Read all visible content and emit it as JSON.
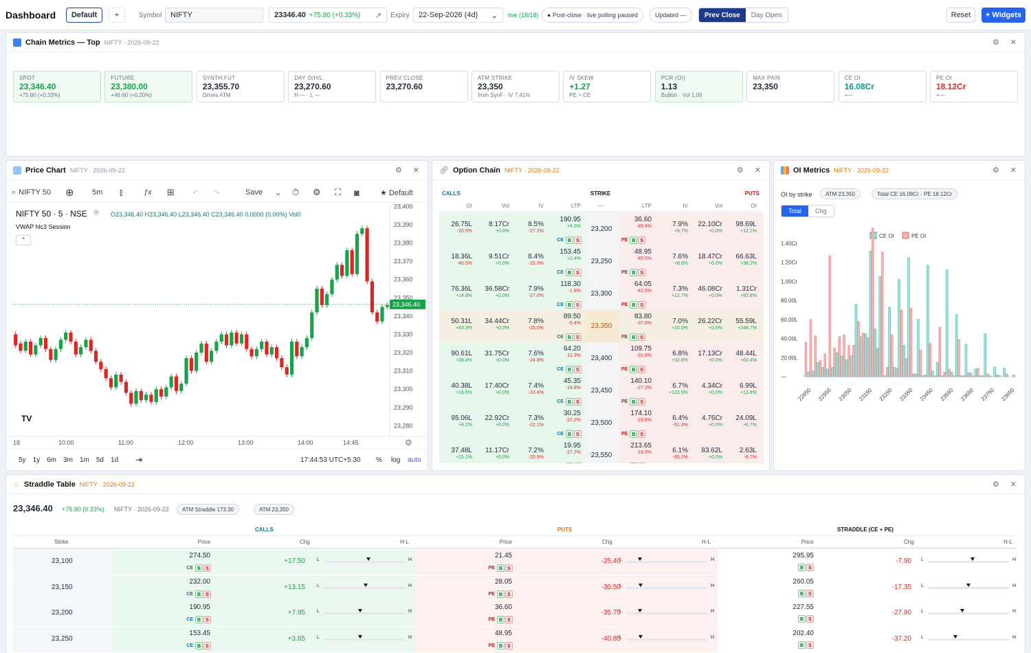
{
  "topbar": {
    "title": "Dashboard",
    "layout_btn": "Default",
    "add_btn": "+",
    "symbol_label": "Symbol",
    "symbol_value": "NIFTY",
    "price": "23346.40",
    "change": "+75.80 (+0.33%)",
    "expiry_label": "Expiry",
    "expiry_value": "22-Sep-2026 (4d)",
    "live": "live (18/18)",
    "status_pill": "● Post-close · live polling paused",
    "updated": "Updated —",
    "prev_close": "Prev Close",
    "day_open": "Day Open",
    "reset": "Reset",
    "widgets": "+ Widgets"
  },
  "metrics": {
    "title": "Chain Metrics — Top",
    "sub": "NIFTY · 2026-09-22",
    "cards": [
      {
        "k": "SPOT",
        "v": "23,346.40",
        "s": "+75.80 (+0.33%)",
        "tone": "up",
        "bg": "g"
      },
      {
        "k": "FUTURE",
        "v": "23,380.00",
        "s": "+46.60 (+0.20%)",
        "tone": "up",
        "bg": "g"
      },
      {
        "k": "SYNTH.FUT",
        "v": "23,355.70",
        "s": "Drives ATM",
        "tone": "",
        "bg": ""
      },
      {
        "k": "DAY O/H/L",
        "v": "23,270.60",
        "s": "H — · L —",
        "tone": "",
        "bg": ""
      },
      {
        "k": "PREV CLOSE",
        "v": "23,270.60",
        "s": "",
        "tone": "",
        "bg": ""
      },
      {
        "k": "ATM STRIKE",
        "v": "23,350",
        "s": "from SynF · IV 7.41%",
        "tone": "",
        "bg": ""
      },
      {
        "k": "IV SKEW",
        "v": "+1.27",
        "s": "PE > CE",
        "tone": "up",
        "bg": ""
      },
      {
        "k": "PCR (OI)",
        "v": "1.13",
        "s": "Bullish · Vol 1.00",
        "tone": "",
        "bg": "g"
      },
      {
        "k": "MAX PAIN",
        "v": "23,350",
        "s": "",
        "tone": "",
        "bg": ""
      },
      {
        "k": "CE OI",
        "v": "16.08Cr",
        "s": "+—",
        "tone": "tl",
        "bg": ""
      },
      {
        "k": "PE OI",
        "v": "18.12Cr",
        "s": "+—",
        "tone": "dn",
        "bg": ""
      }
    ]
  },
  "price_chart": {
    "title": "Price Chart",
    "sub": "NIFTY · 2026-09-22",
    "symbol": "NIFTY 50",
    "interval": "5m",
    "save": "Save",
    "template": "★ Default",
    "legend_title": "NIFTY 50 · 5 · NSE",
    "ohlc": "O23,346.40 H23,346.40 L23,346.40 C23,346.40 0.0000 (0.00%) Vol0",
    "indicator": "VWAP hlc3 Session",
    "last_price": "23,346.40",
    "time": "17:44:53 UTC+5:30",
    "ranges": [
      "5y",
      "1y",
      "6m",
      "3m",
      "1m",
      "5d",
      "1d"
    ],
    "pct": "%",
    "log": "log",
    "auto": "auto",
    "tv": "TV"
  },
  "chart_data": {
    "type": "candlestick",
    "title": "NIFTY 50 · 5 · NSE",
    "y_ticks": [
      23400,
      23390,
      23380,
      23370,
      23360,
      23350,
      23340,
      23330,
      23320,
      23310,
      23300,
      23290,
      23280
    ],
    "ylim": [
      23276,
      23402
    ],
    "x_ticks": [
      "18",
      "10:00",
      "11:00",
      "12:00",
      "13:00",
      "14:00",
      "14:45"
    ],
    "last": 23346.4,
    "candles": [
      [
        23330,
        23324
      ],
      [
        23325,
        23321
      ],
      [
        23321,
        23326
      ],
      [
        23326,
        23319
      ],
      [
        23319,
        23324
      ],
      [
        23324,
        23328
      ],
      [
        23328,
        23322
      ],
      [
        23322,
        23316
      ],
      [
        23316,
        23322
      ],
      [
        23322,
        23327
      ],
      [
        23327,
        23331
      ],
      [
        23331,
        23326
      ],
      [
        23326,
        23319
      ],
      [
        23319,
        23323
      ],
      [
        23323,
        23327
      ],
      [
        23327,
        23321
      ],
      [
        23321,
        23315
      ],
      [
        23315,
        23311
      ],
      [
        23311,
        23306
      ],
      [
        23306,
        23301
      ],
      [
        23301,
        23308
      ],
      [
        23308,
        23304
      ],
      [
        23304,
        23298
      ],
      [
        23298,
        23292
      ],
      [
        23292,
        23299
      ],
      [
        23299,
        23294
      ],
      [
        23294,
        23297
      ],
      [
        23297,
        23293
      ],
      [
        23293,
        23300
      ],
      [
        23300,
        23296
      ],
      [
        23296,
        23301
      ],
      [
        23301,
        23307
      ],
      [
        23307,
        23299
      ],
      [
        23299,
        23303
      ],
      [
        23303,
        23317
      ],
      [
        23317,
        23310
      ],
      [
        23310,
        23320
      ],
      [
        23320,
        23325
      ],
      [
        23325,
        23315
      ],
      [
        23315,
        23321
      ],
      [
        23321,
        23326
      ],
      [
        23326,
        23330
      ],
      [
        23330,
        23324
      ],
      [
        23324,
        23331
      ],
      [
        23331,
        23325
      ],
      [
        23325,
        23330
      ],
      [
        23330,
        23322
      ],
      [
        23322,
        23318
      ],
      [
        23318,
        23322
      ],
      [
        23322,
        23326
      ],
      [
        23326,
        23319
      ],
      [
        23319,
        23323
      ],
      [
        23323,
        23317
      ],
      [
        23317,
        23312
      ],
      [
        23312,
        23308
      ],
      [
        23308,
        23326
      ],
      [
        23326,
        23318
      ],
      [
        23318,
        23323
      ],
      [
        23323,
        23328
      ],
      [
        23328,
        23342
      ],
      [
        23342,
        23355
      ],
      [
        23355,
        23346
      ],
      [
        23346,
        23352
      ],
      [
        23352,
        23360
      ],
      [
        23360,
        23368
      ],
      [
        23368,
        23362
      ],
      [
        23362,
        23376
      ],
      [
        23376,
        23363
      ],
      [
        23363,
        23385
      ],
      [
        23385,
        23388
      ],
      [
        23388,
        23359
      ],
      [
        23359,
        23342
      ],
      [
        23342,
        23337
      ],
      [
        23337,
        23345
      ],
      [
        23345,
        23346
      ]
    ]
  },
  "option_chain": {
    "title": "Option Chain",
    "sub": "NIFTY · 2026-09-22",
    "calls": "CALLS",
    "strike": "STRIKE",
    "puts": "PUTS",
    "cols": {
      "oi": "OI",
      "vol": "Vol",
      "iv": "IV",
      "ltp": "LTP",
      "dash": "—"
    },
    "rows": [
      {
        "strike": "23,200",
        "c_oi": "26.75L",
        "c_oich": "-20.5%",
        "c_vol": "8.17Cr",
        "c_volch": "+0.0%",
        "c_iv": "8.5%",
        "c_ivch": "-27.2%",
        "c_ltp": "190.95",
        "c_ltpch": "+4.3%",
        "p_ltp": "36.60",
        "p_ltpch": "-49.4%",
        "p_iv": "7.9%",
        "p_ivch": "+6.7%",
        "p_vol": "22.10Cr",
        "p_volch": "+0.0%",
        "p_oi": "98.69L",
        "p_oich": "+12.1%"
      },
      {
        "strike": "23,250",
        "c_oi": "18.36L",
        "c_oich": "-40.5%",
        "c_vol": "9.51Cr",
        "c_volch": "+0.0%",
        "c_iv": "8.4%",
        "c_ivch": "-25.3%",
        "c_ltp": "153.45",
        "c_ltpch": "+2.4%",
        "p_ltp": "48.95",
        "p_ltpch": "-45.5%",
        "p_iv": "7.6%",
        "p_ivch": "+8.6%",
        "p_vol": "18.47Cr",
        "p_volch": "+0.0%",
        "p_oi": "66.63L",
        "p_oich": "+38.2%"
      },
      {
        "strike": "23,300",
        "c_oi": "76.36L",
        "c_oich": "+14.9%",
        "c_vol": "36.58Cr",
        "c_volch": "+0.0%",
        "c_iv": "7.9%",
        "c_ivch": "-27.0%",
        "c_ltp": "118.30",
        "c_ltpch": "-1.9%",
        "p_ltp": "64.05",
        "p_ltpch": "-41.5%",
        "p_iv": "7.3%",
        "p_ivch": "+12.7%",
        "p_vol": "46.08Cr",
        "p_volch": "+0.0%",
        "p_oi": "1.31Cr",
        "p_oich": "+92.8%"
      },
      {
        "strike": "23,350",
        "c_oi": "50.31L",
        "c_oich": "+43.3%",
        "c_vol": "34.44Cr",
        "c_volch": "+0.0%",
        "c_iv": "7.8%",
        "c_ivch": "-25.0%",
        "c_ltp": "89.50",
        "c_ltpch": "-5.4%",
        "p_ltp": "83.80",
        "p_ltpch": "-37.0%",
        "p_iv": "7.0%",
        "p_ivch": "+20.0%",
        "p_vol": "26.22Cr",
        "p_volch": "+0.0%",
        "p_oi": "55.59L",
        "p_oich": "+248.7%",
        "atm": true
      },
      {
        "strike": "23,400",
        "c_oi": "90.61L",
        "c_oich": "+38.4%",
        "c_vol": "31.75Cr",
        "c_volch": "+0.0%",
        "c_iv": "7.6%",
        "c_ivch": "-24.9%",
        "c_ltp": "64.20",
        "c_ltpch": "-11.3%",
        "p_ltp": "109.75",
        "p_ltpch": "-31.8%",
        "p_iv": "6.8%",
        "p_ivch": "+32.6%",
        "p_vol": "17.13Cr",
        "p_volch": "+0.0%",
        "p_oi": "48.44L",
        "p_oich": "+62.4%"
      },
      {
        "strike": "23,450",
        "c_oi": "40.38L",
        "c_oich": "+16.6%",
        "c_vol": "17.40Cr",
        "c_volch": "+0.0%",
        "c_iv": "7.4%",
        "c_ivch": "-23.4%",
        "c_ltp": "45.35",
        "c_ltpch": "-14.8%",
        "p_ltp": "140.10",
        "p_ltpch": "-27.3%",
        "p_iv": "6.7%",
        "p_ivch": "+123.9%",
        "p_vol": "4.34Cr",
        "p_volch": "+0.0%",
        "p_oi": "6.99L",
        "p_oich": "+13.8%"
      },
      {
        "strike": "23,500",
        "c_oi": "95.06L",
        "c_oich": "+4.2%",
        "c_vol": "22.92Cr",
        "c_volch": "+0.0%",
        "c_iv": "7.3%",
        "c_ivch": "-22.1%",
        "c_ltp": "30.25",
        "c_ltpch": "-22.2%",
        "p_ltp": "174.10",
        "p_ltpch": "-23.6%",
        "p_iv": "6.4%",
        "p_ivch": "-61.3%",
        "p_vol": "4.76Cr",
        "p_volch": "+0.0%",
        "p_oi": "24.09L",
        "p_oich": "+6.7%"
      },
      {
        "strike": "23,550",
        "c_oi": "37.48L",
        "c_oich": "+15.1%",
        "c_vol": "11.17Cr",
        "c_volch": "+0.0%",
        "c_iv": "7.2%",
        "c_ivch": "-20.9%",
        "c_ltp": "19.95",
        "c_ltpch": "-27.2%",
        "p_ltp": "213.65",
        "p_ltpch": "-19.9%",
        "p_iv": "6.1%",
        "p_ivch": "-65.2%",
        "p_vol": "83.62L",
        "p_volch": "+0.0%",
        "p_oi": "2.63L",
        "p_oich": "-8.7%"
      }
    ]
  },
  "oi_metrics": {
    "title": "OI Metrics",
    "sub": "NIFTY · 2026-09-22",
    "by_strike": "OI by strike",
    "atm_pill": "ATM 23,350",
    "total_pill": "Total CE 16.08Cr · PE 18.12Cr",
    "tab_total": "Total",
    "tab_chg": "Chg",
    "legend_ce": "CE OI",
    "legend_pe": "PE OI",
    "y_ticks": [
      "1.40Cr",
      "1.20Cr",
      "1.00Cr",
      "80.00L",
      "60.00L",
      "40.00L",
      "20.00L",
      "—"
    ],
    "x_ticks": [
      "22850",
      "22950",
      "23050",
      "23150",
      "23250",
      "23350",
      "23450",
      "23550",
      "23650",
      "23750",
      "23850"
    ],
    "strikes": [
      22850,
      22900,
      22950,
      23000,
      23050,
      23100,
      23150,
      23200,
      23250,
      23300,
      23350,
      23400,
      23450,
      23500,
      23550,
      23600,
      23650,
      23700,
      23750,
      23800,
      23850,
      23900
    ],
    "ce": [
      0.5,
      0.6,
      1.5,
      1.0,
      0.8,
      1.0,
      2.5,
      2.2,
      1.8,
      2.2,
      7.6,
      4.2,
      4.5,
      13.2,
      5.0,
      10.5,
      0.1,
      7.3,
      1.0,
      10.2,
      3.3,
      12.5,
      0.3,
      6.0,
      0.1,
      11.7,
      0.6,
      1.5,
      0.1,
      11.2,
      0.5,
      6.5,
      0.1,
      3.4,
      0.4,
      0.8,
      0.1,
      4.5,
      0.1,
      1.0,
      0.1,
      0.9,
      0.0,
      0.2
    ],
    "pe": [
      3.6,
      6.0,
      4.3,
      1.7,
      2.4,
      12.7,
      3.0,
      4.2,
      4.4,
      3.3,
      3.3,
      5.8,
      4.6,
      4.1,
      15.6,
      3.0,
      13.1,
      1.0,
      4.4,
      0.9,
      7.0,
      1.9,
      7.2,
      0.3,
      2.8,
      0.2,
      3.5,
      0.1,
      5.2,
      0.5,
      0.8,
      0.1,
      3.9,
      0.1,
      0.4,
      0.1,
      0.9,
      0.1,
      0.3,
      0.0,
      0.2,
      0.0,
      0.3,
      0.0
    ]
  },
  "straddle": {
    "title": "Straddle Table",
    "sub": "NIFTY · 2026-09-22",
    "price": "23,346.40",
    "change": "+75.80 (0.33%)",
    "meta": "NIFTY · 2026-09-22",
    "atm_straddle": "ATM Straddle 173.30",
    "atm": "ATM 23,350",
    "calls": "CALLS",
    "puts": "PUTS",
    "straddle": "STRADDLE (CE + PE)",
    "cols": {
      "strike": "Strike",
      "price": "Price",
      "chg": "Chg",
      "hl": "H-L",
      "l": "L",
      "h": "H"
    },
    "rows": [
      {
        "strike": "23,100",
        "c_price": "274.50",
        "c_chg": "+17.50",
        "c_pos": 0.55,
        "p_price": "21.45",
        "p_chg": "-25.40",
        "p_pos": 0.15,
        "s_price": "295.95",
        "s_chg": "-7.90",
        "s_pos": 0.55
      },
      {
        "strike": "23,150",
        "c_price": "232.00",
        "c_chg": "+13.15",
        "c_pos": 0.52,
        "p_price": "28.05",
        "p_chg": "-30.50",
        "p_pos": 0.16,
        "s_price": "260.05",
        "s_chg": "-17.35",
        "s_pos": 0.5
      },
      {
        "strike": "23,200",
        "c_price": "190.95",
        "c_chg": "+7.95",
        "c_pos": 0.45,
        "p_price": "36.60",
        "p_chg": "-35.75",
        "p_pos": 0.15,
        "s_price": "227.55",
        "s_chg": "-27.80",
        "s_pos": 0.42
      },
      {
        "strike": "23,250",
        "c_price": "153.45",
        "c_chg": "+3.65",
        "c_pos": 0.45,
        "p_price": "48.95",
        "p_chg": "-40.85",
        "p_pos": 0.16,
        "s_price": "202.40",
        "s_chg": "-37.20",
        "s_pos": 0.33
      }
    ]
  }
}
